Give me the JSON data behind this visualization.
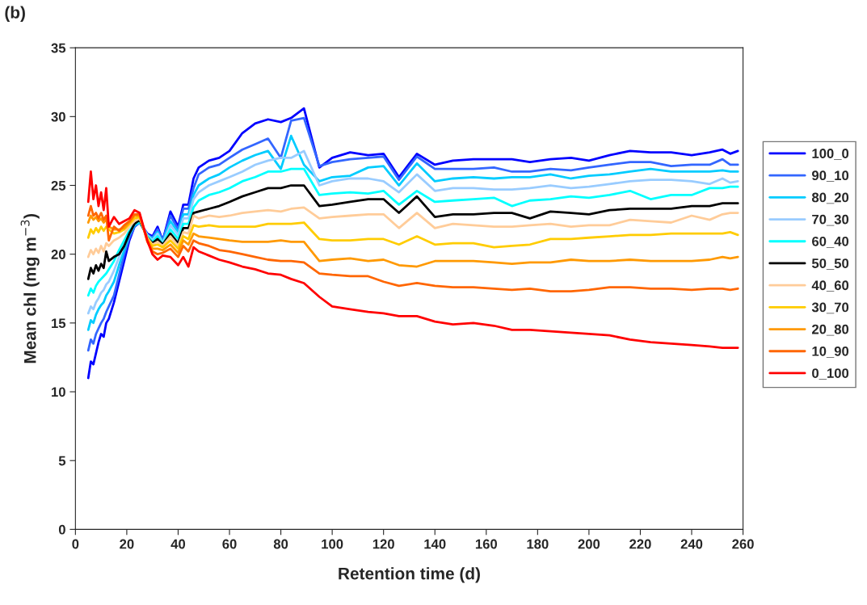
{
  "chart_data": {
    "type": "line",
    "title": "(b)",
    "xlabel": "Retention time (d)",
    "ylabel": "Mean chl (mg m$^{−3}$)",
    "xlim": [
      0,
      260
    ],
    "xticks": [
      0,
      20,
      40,
      60,
      80,
      100,
      120,
      140,
      160,
      180,
      200,
      220,
      240,
      260
    ],
    "ylim": [
      0,
      35
    ],
    "yticks": [
      0,
      5,
      10,
      15,
      20,
      25,
      30,
      35
    ],
    "grid": false,
    "legend": "right",
    "marker": "none",
    "line_style": "solid",
    "x": [
      5,
      6,
      7,
      8,
      9,
      10,
      11,
      12,
      13,
      15,
      17,
      19,
      21,
      23,
      25,
      28,
      30,
      32,
      34,
      37,
      40,
      42,
      44,
      46,
      48,
      52,
      56,
      60,
      65,
      70,
      75,
      80,
      84,
      89,
      95,
      100,
      107,
      114,
      120,
      126,
      133,
      140,
      147,
      155,
      163,
      170,
      177,
      185,
      193,
      200,
      208,
      216,
      224,
      232,
      240,
      247,
      252,
      255,
      258
    ],
    "series": [
      {
        "name": "100_0",
        "color": "#0000ff",
        "values": [
          11.0,
          12.2,
          12.0,
          12.8,
          13.6,
          14.2,
          14.0,
          15.0,
          15.3,
          16.5,
          18.0,
          19.5,
          21.0,
          22.0,
          22.3,
          21.5,
          21.3,
          22.0,
          21.0,
          23.1,
          22.0,
          23.6,
          23.6,
          25.5,
          26.3,
          26.8,
          27.0,
          27.5,
          28.8,
          29.5,
          29.8,
          29.6,
          29.9,
          30.6,
          26.3,
          27.0,
          27.4,
          27.2,
          27.3,
          25.6,
          27.3,
          26.5,
          26.8,
          26.9,
          26.9,
          26.9,
          26.7,
          26.9,
          27.0,
          26.8,
          27.2,
          27.5,
          27.4,
          27.4,
          27.2,
          27.4,
          27.6,
          27.3,
          27.5
        ]
      },
      {
        "name": "90_10",
        "color": "#3366ff",
        "values": [
          13.0,
          13.8,
          13.5,
          14.2,
          14.6,
          15.0,
          15.3,
          15.8,
          16.2,
          17.0,
          18.5,
          20.0,
          21.2,
          22.0,
          22.3,
          21.4,
          21.2,
          21.8,
          21.0,
          22.8,
          21.8,
          23.3,
          23.3,
          24.8,
          25.8,
          26.3,
          26.5,
          27.0,
          27.6,
          28.0,
          28.4,
          27.0,
          29.7,
          29.9,
          26.4,
          26.7,
          26.9,
          27.0,
          27.1,
          25.4,
          27.1,
          26.2,
          26.2,
          26.2,
          26.3,
          26.0,
          26.0,
          26.2,
          26.1,
          26.3,
          26.5,
          26.7,
          26.7,
          26.4,
          26.5,
          26.5,
          26.9,
          26.5,
          26.5
        ]
      },
      {
        "name": "80_20",
        "color": "#00ccff",
        "values": [
          14.5,
          15.2,
          15.0,
          15.6,
          16.0,
          16.3,
          16.5,
          17.0,
          17.3,
          18.0,
          19.2,
          20.3,
          21.4,
          22.1,
          22.3,
          21.4,
          21.1,
          21.6,
          20.9,
          22.4,
          21.6,
          22.9,
          22.9,
          24.3,
          25.0,
          25.5,
          25.8,
          26.3,
          26.8,
          27.2,
          27.5,
          26.2,
          28.6,
          26.5,
          25.3,
          25.6,
          25.7,
          26.3,
          26.4,
          25.0,
          26.6,
          25.3,
          25.5,
          25.6,
          25.5,
          25.6,
          25.6,
          25.8,
          25.5,
          25.7,
          25.8,
          26.0,
          26.2,
          26.0,
          26.0,
          26.0,
          26.1,
          26.0,
          26.0
        ]
      },
      {
        "name": "70_30",
        "color": "#99ccff",
        "values": [
          15.7,
          16.2,
          16.0,
          16.5,
          16.8,
          17.2,
          17.4,
          17.8,
          18.0,
          18.8,
          19.8,
          20.8,
          21.6,
          22.2,
          22.4,
          21.4,
          21.0,
          21.5,
          20.8,
          22.1,
          21.4,
          22.6,
          22.6,
          24.0,
          24.5,
          25.0,
          25.3,
          25.6,
          26.0,
          26.5,
          26.8,
          27.0,
          27.0,
          27.5,
          25.0,
          25.3,
          25.5,
          25.5,
          25.3,
          24.5,
          25.8,
          24.6,
          24.8,
          24.8,
          24.7,
          24.7,
          24.8,
          25.0,
          24.8,
          24.9,
          25.1,
          25.3,
          25.4,
          25.4,
          25.3,
          25.1,
          25.5,
          25.2,
          25.3
        ]
      },
      {
        "name": "60_40",
        "color": "#00ffff",
        "values": [
          17.0,
          17.5,
          17.2,
          17.7,
          18.0,
          18.2,
          18.4,
          18.6,
          18.9,
          19.5,
          20.3,
          21.0,
          21.7,
          22.2,
          22.4,
          21.3,
          20.9,
          21.3,
          20.7,
          21.8,
          21.1,
          22.2,
          22.2,
          23.4,
          23.9,
          24.3,
          24.5,
          24.8,
          25.3,
          25.6,
          26.0,
          26.0,
          26.2,
          26.2,
          24.3,
          24.4,
          24.5,
          24.4,
          24.6,
          23.6,
          24.6,
          23.8,
          23.9,
          24.0,
          24.1,
          23.5,
          23.9,
          24.0,
          24.2,
          24.1,
          24.3,
          24.6,
          24.0,
          24.3,
          24.3,
          24.8,
          24.8,
          24.9,
          24.9
        ]
      },
      {
        "name": "50_50",
        "color": "#000000",
        "values": [
          18.2,
          19.0,
          18.6,
          19.2,
          18.8,
          19.3,
          19.0,
          20.2,
          19.5,
          19.8,
          20.0,
          20.6,
          21.5,
          22.2,
          22.5,
          21.2,
          20.8,
          21.1,
          20.7,
          21.5,
          20.8,
          21.9,
          21.9,
          23.0,
          23.1,
          23.3,
          23.5,
          23.8,
          24.2,
          24.5,
          24.8,
          24.8,
          25.0,
          25.0,
          23.5,
          23.6,
          23.8,
          24.0,
          24.0,
          23.0,
          24.2,
          22.7,
          22.9,
          22.9,
          23.0,
          23.0,
          22.6,
          23.1,
          23.0,
          22.9,
          23.2,
          23.3,
          23.3,
          23.3,
          23.5,
          23.5,
          23.7,
          23.7,
          23.7
        ]
      },
      {
        "name": "40_60",
        "color": "#ffcc99",
        "values": [
          19.8,
          20.3,
          20.0,
          20.4,
          20.1,
          20.6,
          20.2,
          20.8,
          20.6,
          21.0,
          21.2,
          21.5,
          22.0,
          22.4,
          22.6,
          21.2,
          20.7,
          20.9,
          20.6,
          21.3,
          20.6,
          21.6,
          21.5,
          22.8,
          22.6,
          22.8,
          22.7,
          22.8,
          23.0,
          23.1,
          23.2,
          23.1,
          23.3,
          23.4,
          22.6,
          22.7,
          22.8,
          22.9,
          22.9,
          21.9,
          23.0,
          21.9,
          22.2,
          22.1,
          22.0,
          22.0,
          22.1,
          22.2,
          22.0,
          22.1,
          22.1,
          22.5,
          22.4,
          22.3,
          22.8,
          22.5,
          22.9,
          23.0,
          23.0
        ]
      },
      {
        "name": "30_70",
        "color": "#ffcc00",
        "values": [
          21.2,
          21.8,
          21.5,
          21.9,
          21.6,
          22.0,
          21.7,
          22.0,
          21.8,
          21.5,
          21.6,
          21.8,
          22.2,
          22.6,
          22.7,
          21.1,
          20.6,
          20.7,
          20.5,
          21.0,
          20.4,
          21.3,
          21.1,
          22.1,
          22.0,
          22.1,
          22.0,
          22.0,
          22.0,
          22.0,
          22.2,
          22.2,
          22.2,
          22.3,
          21.1,
          21.0,
          21.0,
          21.1,
          21.1,
          20.7,
          21.3,
          20.7,
          20.8,
          20.8,
          20.5,
          20.6,
          20.7,
          21.1,
          21.1,
          21.2,
          21.3,
          21.4,
          21.4,
          21.5,
          21.5,
          21.5,
          21.5,
          21.6,
          21.4
        ]
      },
      {
        "name": "20_80",
        "color": "#ff9900",
        "values": [
          22.3,
          22.8,
          22.5,
          22.7,
          22.4,
          22.6,
          22.3,
          22.5,
          22.0,
          21.8,
          21.8,
          21.9,
          22.3,
          22.8,
          22.8,
          21.0,
          20.4,
          20.4,
          20.3,
          20.7,
          20.1,
          21.0,
          20.7,
          21.5,
          21.3,
          21.2,
          21.1,
          21.0,
          20.9,
          20.9,
          20.9,
          21.0,
          20.9,
          20.9,
          19.5,
          19.6,
          19.7,
          19.5,
          19.6,
          19.2,
          19.1,
          19.5,
          19.5,
          19.5,
          19.4,
          19.3,
          19.4,
          19.4,
          19.6,
          19.5,
          19.5,
          19.6,
          19.5,
          19.5,
          19.5,
          19.6,
          19.8,
          19.7,
          19.8
        ]
      },
      {
        "name": "10_90",
        "color": "#ff6600",
        "values": [
          22.8,
          23.5,
          22.8,
          23.0,
          22.6,
          23.0,
          22.5,
          22.8,
          21.0,
          22.0,
          21.7,
          22.1,
          22.4,
          22.9,
          22.9,
          20.9,
          20.2,
          20.0,
          20.1,
          20.4,
          19.8,
          20.6,
          20.2,
          21.0,
          20.8,
          20.6,
          20.3,
          20.2,
          20.0,
          19.8,
          19.6,
          19.5,
          19.5,
          19.4,
          18.6,
          18.5,
          18.4,
          18.4,
          18.0,
          17.7,
          17.9,
          17.7,
          17.6,
          17.6,
          17.5,
          17.4,
          17.5,
          17.3,
          17.3,
          17.4,
          17.6,
          17.6,
          17.5,
          17.5,
          17.4,
          17.5,
          17.5,
          17.4,
          17.5
        ]
      },
      {
        "name": "0_100",
        "color": "#ff0000",
        "values": [
          23.8,
          26.0,
          24.0,
          25.0,
          23.5,
          24.5,
          23.2,
          24.8,
          22.0,
          22.7,
          22.2,
          22.4,
          22.6,
          23.2,
          23.0,
          21.0,
          20.0,
          19.6,
          19.9,
          19.8,
          19.2,
          19.8,
          19.1,
          20.5,
          20.2,
          19.9,
          19.6,
          19.4,
          19.1,
          18.9,
          18.6,
          18.5,
          18.2,
          17.9,
          16.9,
          16.2,
          16.0,
          15.8,
          15.7,
          15.5,
          15.5,
          15.1,
          14.9,
          15.0,
          14.8,
          14.5,
          14.5,
          14.4,
          14.3,
          14.2,
          14.1,
          13.8,
          13.6,
          13.5,
          13.4,
          13.3,
          13.2,
          13.2,
          13.2
        ]
      }
    ]
  }
}
